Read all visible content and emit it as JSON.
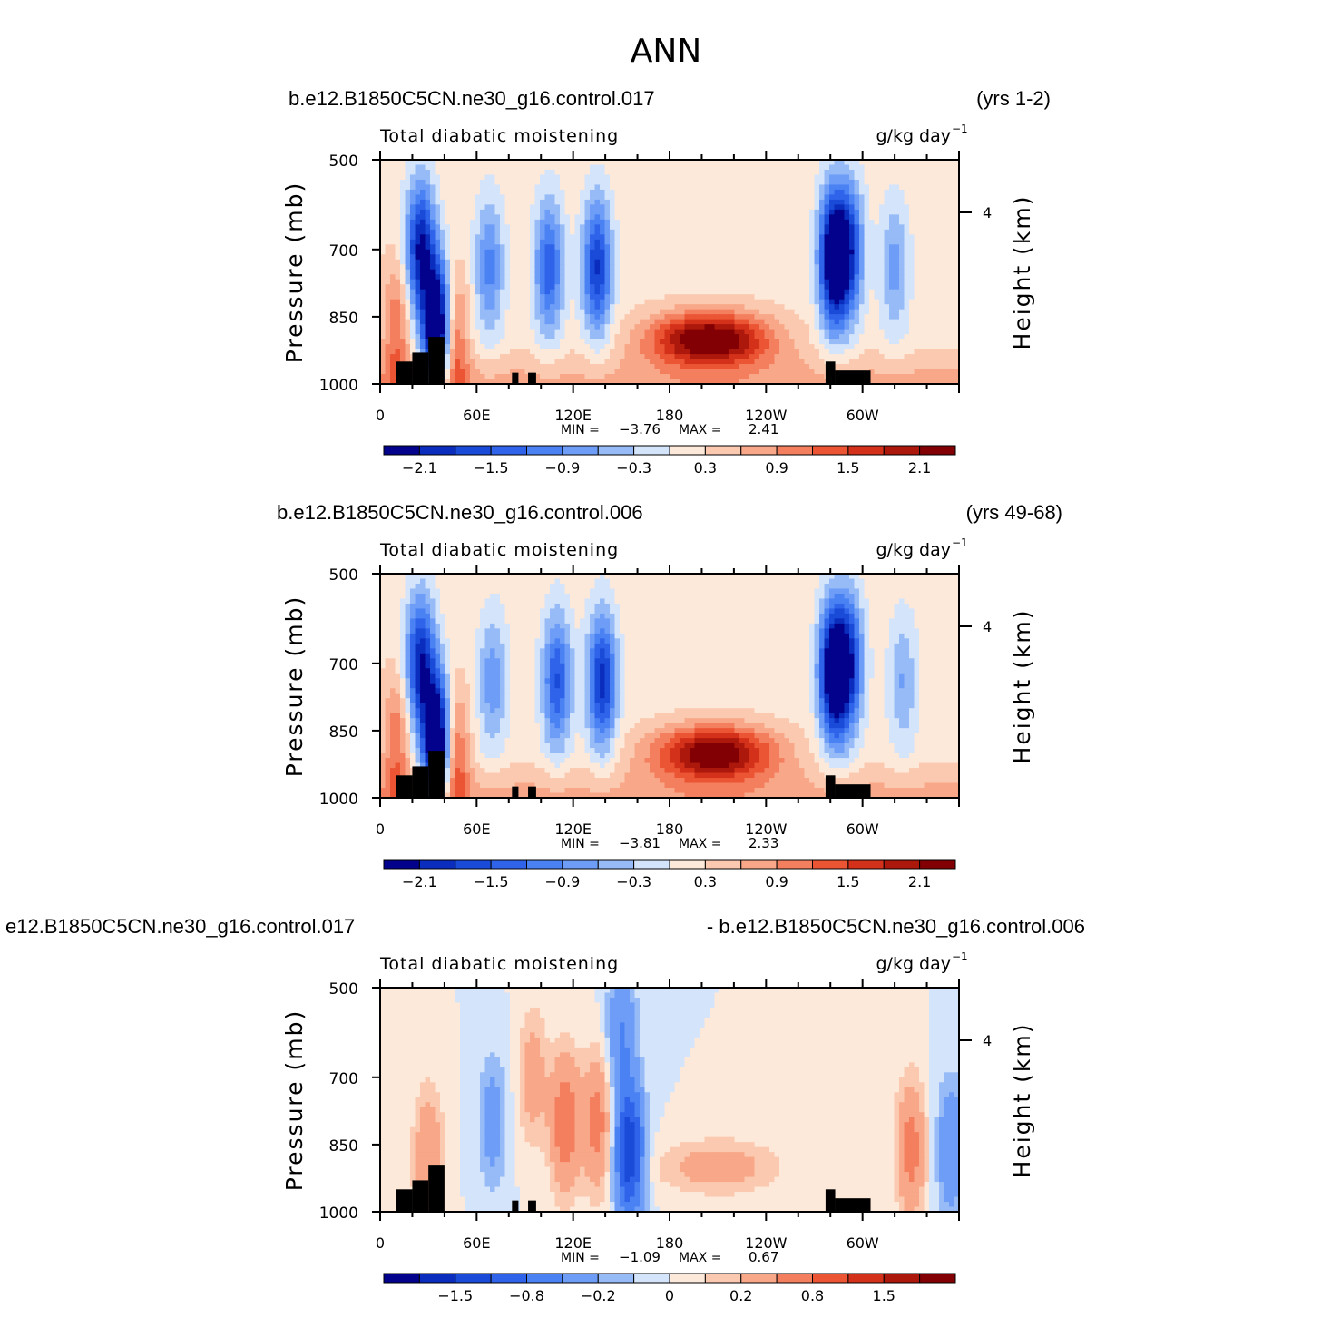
{
  "figure": {
    "title": "ANN"
  },
  "chart_data": [
    {
      "type": "heatmap",
      "case_left": "b.e12.B1850C5CN.ne30_g16.control.017",
      "case_right": "(yrs 1-2)",
      "variable": "Total diabatic moistening",
      "units": "g/kg day",
      "units_exp": "−1",
      "ylabel": "Pressure (mb)",
      "y2label": "Height (km)",
      "y_ticks": [
        500,
        700,
        850,
        1000
      ],
      "y2_ticks": [
        "4"
      ],
      "x_ticks": [
        "0",
        "60E",
        "120E",
        "180",
        "120W",
        "60W"
      ],
      "xlim": [
        0,
        360
      ],
      "ylim": [
        1000,
        500
      ],
      "min_label": "MIN =",
      "min_value": "−3.76",
      "max_label": "MAX =",
      "max_value": "2.41",
      "colorbar_labels": [
        "−2.1",
        "−1.5",
        "−0.9",
        "−0.3",
        "0.3",
        "0.9",
        "1.5",
        "2.1"
      ],
      "levels": [
        -2.4,
        -2.1,
        -1.8,
        -1.5,
        -1.2,
        -0.9,
        -0.6,
        -0.3,
        0,
        0.3,
        0.6,
        0.9,
        1.2,
        1.5,
        1.8,
        2.1,
        2.4
      ],
      "features": [
        {
          "lon": 25,
          "p": 700,
          "value": -2.3
        },
        {
          "lon": 36,
          "p": 880,
          "value": -3.5
        },
        {
          "lon": 68,
          "p": 740,
          "value": -1.2
        },
        {
          "lon": 105,
          "p": 740,
          "value": -1.6
        },
        {
          "lon": 135,
          "p": 740,
          "value": -2.0
        },
        {
          "lon": 205,
          "p": 900,
          "value": 2.4
        },
        {
          "lon": 282,
          "p": 720,
          "value": -3.0
        },
        {
          "lon": 292,
          "p": 700,
          "value": -1.7
        },
        {
          "lon": 320,
          "p": 740,
          "value": -0.9
        },
        {
          "lon": 45,
          "p": 900,
          "value": 1.5
        },
        {
          "lon": 10,
          "p": 880,
          "value": 1.0
        }
      ]
    },
    {
      "type": "heatmap",
      "case_left": "b.e12.B1850C5CN.ne30_g16.control.006",
      "case_right": "(yrs 49-68)",
      "variable": "Total diabatic moistening",
      "units": "g/kg day",
      "units_exp": "−1",
      "ylabel": "Pressure (mb)",
      "y2label": "Height (km)",
      "y_ticks": [
        500,
        700,
        850,
        1000
      ],
      "y2_ticks": [
        "4"
      ],
      "x_ticks": [
        "0",
        "60E",
        "120E",
        "180",
        "120W",
        "60W"
      ],
      "xlim": [
        0,
        360
      ],
      "ylim": [
        1000,
        500
      ],
      "min_label": "MIN =",
      "min_value": "−3.81",
      "max_label": "MAX =",
      "max_value": "2.33",
      "colorbar_labels": [
        "−2.1",
        "−1.5",
        "−0.9",
        "−0.3",
        "0.3",
        "0.9",
        "1.5",
        "2.1"
      ],
      "levels": [
        -2.4,
        -2.1,
        -1.8,
        -1.5,
        -1.2,
        -0.9,
        -0.6,
        -0.3,
        0,
        0.3,
        0.6,
        0.9,
        1.2,
        1.5,
        1.8,
        2.1,
        2.4
      ],
      "features": [
        {
          "lon": 25,
          "p": 700,
          "value": -2.2
        },
        {
          "lon": 36,
          "p": 880,
          "value": -3.6
        },
        {
          "lon": 70,
          "p": 740,
          "value": -1.0
        },
        {
          "lon": 110,
          "p": 740,
          "value": -1.7
        },
        {
          "lon": 138,
          "p": 740,
          "value": -2.1
        },
        {
          "lon": 208,
          "p": 900,
          "value": 2.3
        },
        {
          "lon": 282,
          "p": 720,
          "value": -3.0
        },
        {
          "lon": 292,
          "p": 700,
          "value": -1.8
        },
        {
          "lon": 325,
          "p": 740,
          "value": -0.8
        },
        {
          "lon": 45,
          "p": 900,
          "value": 1.6
        },
        {
          "lon": 10,
          "p": 880,
          "value": 1.0
        }
      ]
    },
    {
      "type": "heatmap",
      "case_left": "e12.B1850C5CN.ne30_g16.control.017",
      "case_right": "- b.e12.B1850C5CN.ne30_g16.control.006",
      "variable": "Total diabatic moistening",
      "units": "g/kg day",
      "units_exp": "−1",
      "ylabel": "Pressure (mb)",
      "y2label": "Height (km)",
      "y_ticks": [
        500,
        700,
        850,
        1000
      ],
      "y2_ticks": [
        "4"
      ],
      "x_ticks": [
        "0",
        "60E",
        "120E",
        "180",
        "120W",
        "60W"
      ],
      "xlim": [
        0,
        360
      ],
      "ylim": [
        1000,
        500
      ],
      "min_label": "MIN =",
      "min_value": "−1.09",
      "max_label": "MAX =",
      "max_value": "0.67",
      "colorbar_labels": [
        "−1.5",
        "−0.8",
        "−0.2",
        "0",
        "0.2",
        "0.8",
        "1.5"
      ],
      "levels": [
        -2.0,
        -1.5,
        -1.0,
        -0.8,
        -0.6,
        -0.4,
        -0.2,
        -0.1,
        0,
        0.1,
        0.2,
        0.4,
        0.6,
        0.8,
        1.0,
        1.5,
        2.0
      ],
      "features": [
        {
          "lon": 155,
          "p": 870,
          "value": -1.0
        },
        {
          "lon": 150,
          "p": 600,
          "value": -0.4
        },
        {
          "lon": 115,
          "p": 800,
          "value": 0.6
        },
        {
          "lon": 135,
          "p": 800,
          "value": 0.5
        },
        {
          "lon": 95,
          "p": 700,
          "value": 0.3
        },
        {
          "lon": 330,
          "p": 860,
          "value": 0.5
        },
        {
          "lon": 355,
          "p": 860,
          "value": -0.4
        },
        {
          "lon": 70,
          "p": 800,
          "value": -0.3
        },
        {
          "lon": 210,
          "p": 900,
          "value": 0.3
        },
        {
          "lon": 30,
          "p": 880,
          "value": 0.4
        }
      ]
    }
  ]
}
